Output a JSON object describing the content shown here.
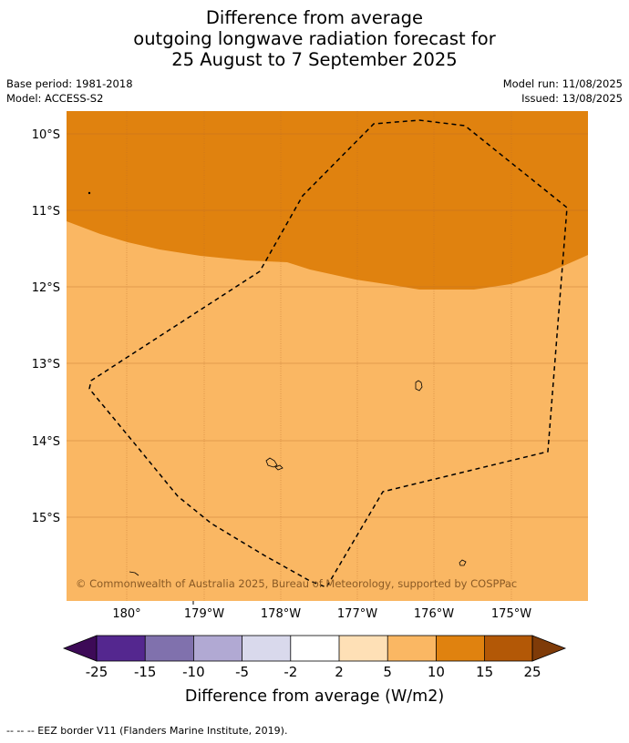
{
  "title": {
    "line1": "Difference from average",
    "line2": "outgoing longwave radiation forecast for",
    "line3": "25 August to 7 September 2025"
  },
  "meta": {
    "base_period": "Base period: 1981-2018",
    "model": "Model: ACCESS-S2",
    "model_run": "Model run: 11/08/2025",
    "issued": "Issued: 13/08/2025"
  },
  "map": {
    "lat_labels": [
      "10°S",
      "11°S",
      "12°S",
      "13°S",
      "14°S",
      "15°S"
    ],
    "lon_labels": [
      "180°",
      "179°W",
      "178°W",
      "177°W",
      "176°W",
      "175°W"
    ],
    "copyright": "© Commonwealth of Australia 2025, Bureau of Meteorology, supported by COSPPac",
    "colors": {
      "anomaly_10_15": "#e0820f",
      "anomaly_5_10": "#fab763",
      "gridline": "#b8692a"
    }
  },
  "colorbar": {
    "ticks": [
      "-25",
      "-15",
      "-10",
      "-5",
      "-2",
      "2",
      "5",
      "10",
      "15",
      "25"
    ],
    "colors": [
      "#3d0a57",
      "#54278f",
      "#8071ad",
      "#b1a9d3",
      "#d9d9ec",
      "#ffffff",
      "#fee0b6",
      "#fab763",
      "#e0820f",
      "#b35806",
      "#7f3b08"
    ],
    "label": "Difference from average (W/m2)"
  },
  "footer": {
    "eez_note": "--  --  -- EEZ border V11 (Flanders Marine Institute, 2019)."
  }
}
